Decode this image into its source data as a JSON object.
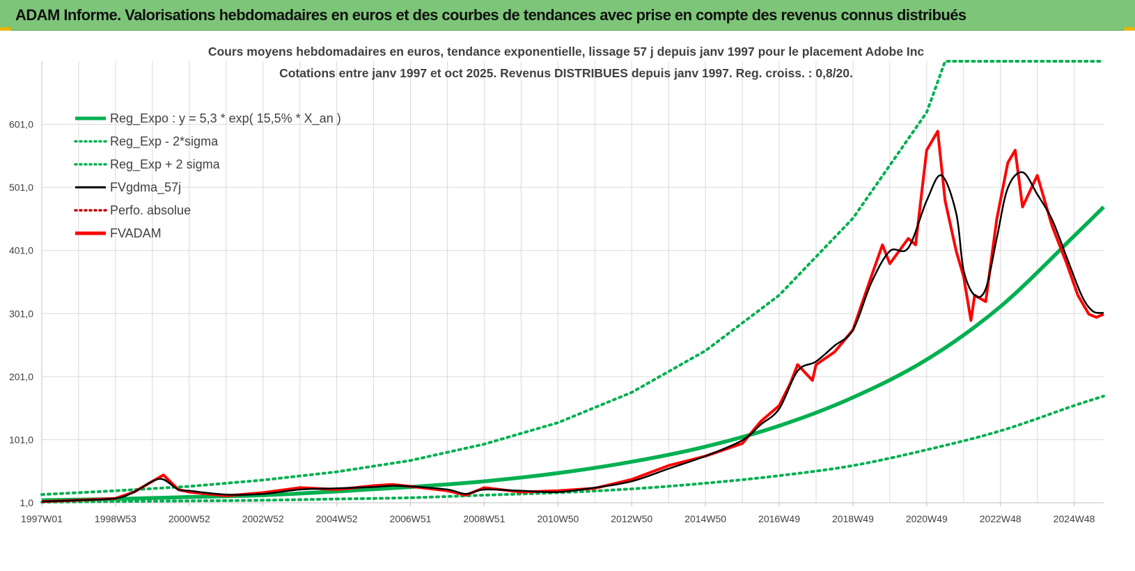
{
  "banner": {
    "title": "ADAM Informe. Valorisations hebdomadaires en euros et des courbes de tendances avec prise en compte des revenus connus distribués"
  },
  "colors": {
    "banner_bg": "#7dc579",
    "reg_green": "#00b050",
    "black": "#000000",
    "red": "#ff0000",
    "grid": "#d9d9d9"
  },
  "chart_data": {
    "type": "line",
    "title_line1": "Cours moyens hebdomadaires en euros, tendance exponentielle, lissage 57 j depuis janv 1997 pour le placement Adobe Inc",
    "title_line2": "Cotations entre janv 1997 et oct 2025. Revenus DISTRIBUES depuis janv 1997. Reg. croiss. : 0,8/20.",
    "xlabel": "",
    "ylabel": "",
    "xlim": [
      1997.0,
      2025.8
    ],
    "ylim": [
      1,
      701
    ],
    "y_ticks": [
      1,
      101,
      201,
      301,
      401,
      501,
      601
    ],
    "y_tick_labels": [
      "1,0",
      "101,0",
      "201,0",
      "301,0",
      "401,0",
      "501,0",
      "601,0"
    ],
    "x_ticks": [
      1997.0,
      1999.0,
      2001.0,
      2003.0,
      2005.0,
      2007.0,
      2009.0,
      2011.0,
      2013.0,
      2015.0,
      2017.0,
      2019.0,
      2021.0,
      2023.0,
      2025.0
    ],
    "x_tick_labels": [
      "1997W01",
      "1998W53",
      "2000W52",
      "2002W52",
      "2004W52",
      "2006W51",
      "2008W51",
      "2010W50",
      "2012W50",
      "2014W50",
      "2016W49",
      "2018W49",
      "2020W49",
      "2022W48",
      "2024W48"
    ],
    "legend": [
      {
        "name": "Reg_Expo : y = 5,3 * exp( 15,5% *  X_an )",
        "style": "solid-thick",
        "color": "#00b050"
      },
      {
        "name": "Reg_Exp - 2*sigma",
        "style": "dotted",
        "color": "#00b050"
      },
      {
        "name": "Reg_Exp + 2 sigma",
        "style": "dotted",
        "color": "#00b050"
      },
      {
        "name": "FVgdma_57j",
        "style": "solid",
        "color": "#000000"
      },
      {
        "name": "Perfo. absolue",
        "style": "dotted",
        "color": "#c00000"
      },
      {
        "name": "FVADAM",
        "style": "solid-thick",
        "color": "#ff0000"
      }
    ],
    "legend_position": "top-left",
    "series": [
      {
        "name": "Reg_Expo",
        "x": [
          1997.0,
          1999.0,
          2001.0,
          2003.0,
          2005.0,
          2007.0,
          2009.0,
          2011.0,
          2013.0,
          2015.0,
          2017.0,
          2019.0,
          2021.0,
          2023.0,
          2025.0,
          2025.8
        ],
        "y": [
          5,
          7,
          10,
          13,
          19,
          26,
          35,
          48,
          66,
          90,
          123,
          168,
          228,
          312,
          424,
          470
        ]
      },
      {
        "name": "Reg_Exp - 2*sigma",
        "x": [
          1997.0,
          1999.0,
          2001.0,
          2003.0,
          2005.0,
          2007.0,
          2009.0,
          2011.0,
          2013.0,
          2015.0,
          2017.0,
          2019.0,
          2021.0,
          2023.0,
          2025.0,
          2025.8
        ],
        "y": [
          2,
          3,
          4,
          5,
          7,
          9,
          13,
          17,
          23,
          32,
          44,
          60,
          85,
          115,
          155,
          170
        ]
      },
      {
        "name": "Reg_Exp + 2 sigma",
        "x": [
          1997.0,
          1999.0,
          2001.0,
          2003.0,
          2005.0,
          2007.0,
          2009.0,
          2011.0,
          2013.0,
          2015.0,
          2017.0,
          2019.0,
          2021.0,
          2021.5,
          2022.0,
          2025.8
        ],
        "y": [
          14,
          20,
          27,
          37,
          50,
          68,
          94,
          128,
          176,
          242,
          330,
          452,
          620,
          701,
          701,
          701
        ]
      },
      {
        "name": "FVgdma_57j",
        "x": [
          1997.0,
          1998.0,
          1999.0,
          1999.5,
          2000.0,
          2000.3,
          2000.7,
          2001.0,
          2002.0,
          2003.0,
          2004.0,
          2005.0,
          2006.0,
          2006.5,
          2007.0,
          2008.0,
          2008.5,
          2009.0,
          2010.0,
          2011.0,
          2012.0,
          2013.0,
          2014.0,
          2015.0,
          2016.0,
          2016.5,
          2017.0,
          2017.5,
          2018.0,
          2018.5,
          2019.0,
          2019.5,
          2020.0,
          2020.5,
          2021.0,
          2021.4,
          2021.8,
          2022.0,
          2022.3,
          2022.6,
          2022.9,
          2023.2,
          2023.6,
          2024.0,
          2024.4,
          2024.8,
          2025.2,
          2025.5,
          2025.8
        ],
        "y": [
          3,
          5,
          8,
          18,
          35,
          38,
          22,
          20,
          14,
          15,
          22,
          24,
          26,
          28,
          27,
          22,
          15,
          22,
          20,
          18,
          25,
          35,
          55,
          75,
          100,
          125,
          150,
          210,
          225,
          250,
          275,
          350,
          400,
          405,
          480,
          520,
          460,
          370,
          330,
          340,
          420,
          500,
          525,
          490,
          450,
          390,
          330,
          305,
          302
        ]
      },
      {
        "name": "FVADAM",
        "x": [
          1997.0,
          1998.0,
          1999.0,
          1999.5,
          2000.0,
          2000.3,
          2000.7,
          2001.0,
          2002.0,
          2003.0,
          2004.0,
          2005.0,
          2006.0,
          2006.5,
          2007.0,
          2008.0,
          2008.5,
          2009.0,
          2010.0,
          2011.0,
          2012.0,
          2013.0,
          2014.0,
          2015.0,
          2016.0,
          2016.5,
          2017.0,
          2017.3,
          2017.5,
          2017.9,
          2018.0,
          2018.5,
          2019.0,
          2019.5,
          2019.8,
          2020.0,
          2020.5,
          2020.7,
          2021.0,
          2021.3,
          2021.5,
          2021.8,
          2022.0,
          2022.2,
          2022.3,
          2022.6,
          2022.9,
          2023.2,
          2023.4,
          2023.6,
          2024.0,
          2024.4,
          2024.8,
          2025.1,
          2025.4,
          2025.6,
          2025.8
        ],
        "y": [
          3,
          5,
          8,
          18,
          35,
          45,
          22,
          18,
          12,
          17,
          25,
          22,
          28,
          30,
          27,
          20,
          13,
          25,
          18,
          20,
          24,
          38,
          60,
          75,
          95,
          130,
          155,
          190,
          220,
          195,
          220,
          240,
          275,
          360,
          410,
          380,
          420,
          410,
          560,
          590,
          480,
          400,
          360,
          290,
          330,
          320,
          450,
          540,
          560,
          470,
          520,
          440,
          380,
          330,
          300,
          295,
          300
        ]
      }
    ]
  }
}
